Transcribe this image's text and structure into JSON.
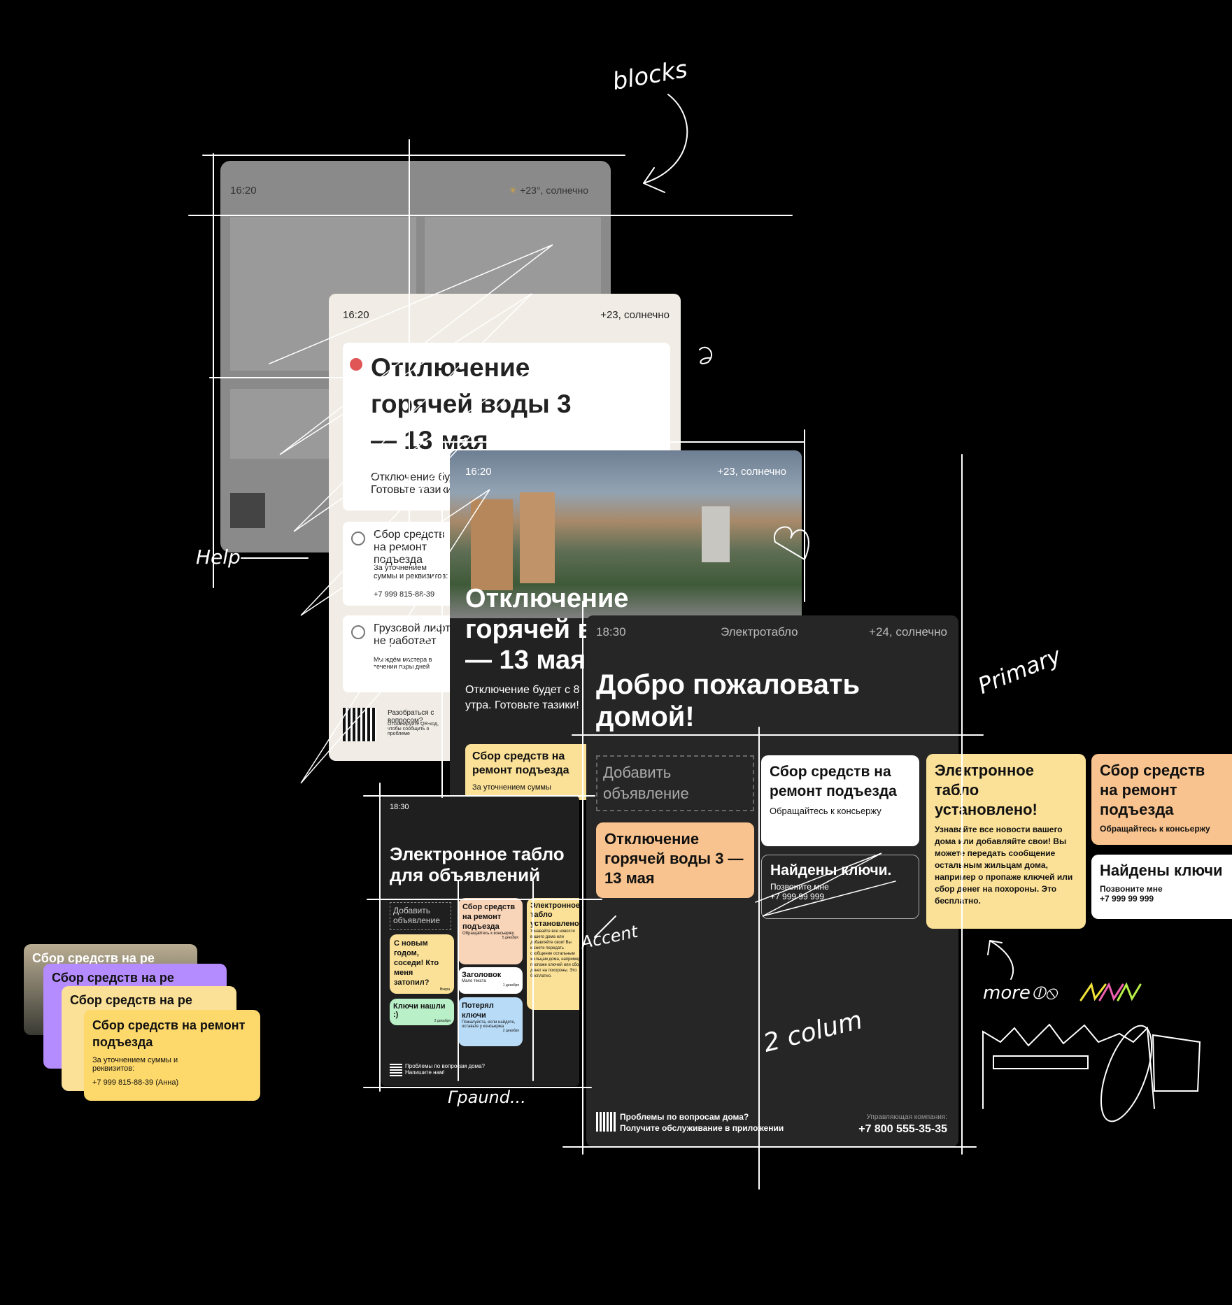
{
  "colors": {
    "background": "#000000",
    "dark_board": "#262626",
    "cream": "#f1ede6",
    "accent_orange": "#f8c38e",
    "accent_yellow": "#fbe197",
    "purple": "#b48cff",
    "mint": "#b9f0c8",
    "blue": "#b8dcf8"
  },
  "grey_screen": {
    "time": "16:20",
    "weather": "+23°, солнечно"
  },
  "cream_screen": {
    "time": "16:20",
    "weather": "+23, солнечно",
    "alert_title": "Отключение горячей воды 3 — 13 мая",
    "alert_text": "Отключение будет… Готовьте тазики!",
    "item1_title": "Сбор средств на ремонт подъезда",
    "item1_text": "За уточнением суммы и реквизитов:",
    "item1_phone": "+7 999 815-88-39",
    "item2_title": "Грузовой лифт не работает",
    "item2_text": "Мы ждём мастера в течении пары дней",
    "footer_title": "Разобраться с вопросом?",
    "footer_text": "Отсканируйте QR-код, чтобы сообщить о проблеме"
  },
  "photo_screen": {
    "time": "16:20",
    "weather": "+23, солнечно",
    "title": "Отключение горячей воды 3 — 13 мая",
    "subtitle": "Отключение будет с 8 утра. Готовьте тазики!",
    "card_title": "Сбор средств на ремонт подъезда",
    "card_text": "За уточнением суммы"
  },
  "small_screen": {
    "time": "18:30",
    "title": "Электронное табло для объявлений",
    "add_label": "Добавить объявление",
    "c1": "С новым годом, соседи! Кто меня затопил?",
    "c1_meta": "Вчера",
    "c2": "Ключи нашли :)",
    "c2_meta": "2 декабря",
    "c3": "Сбор средств на ремонт подъезда",
    "c3_text": "Обращайтесь к консьержу",
    "c3_meta": "5 декабря",
    "c4": "Заголовок",
    "c4_text": "Мало текста",
    "c4_meta": "1 декабря",
    "c5": "Потерял ключи",
    "c5_text": "Пожалуйста, если найдете, оставьте у консьержа",
    "c5_meta": "2 декабря",
    "c6": "Электронное табло установлено!",
    "c6_text": "Узнавайте все новости вашего дома или добавляйте свои! Вы можете передать сообщение остальным жильцам дома, например о пропаже ключей или сбор денег на похороны. Это бесплатно.",
    "footer": "Проблемы по вопросам дома? Напишите нам!"
  },
  "main_screen": {
    "time": "18:30",
    "name": "Электротабло",
    "weather": "+24, солнечно",
    "title": "Добро пожаловать домой!",
    "add_label": "Добавить объявление",
    "c_fund_title": "Сбор средств на ремонт подъезда",
    "c_fund_text": "Обращайтесь к консьержу",
    "c_water": "Отключение горячей воды 3 — 13 мая",
    "c_keys_title": "Найдены ключи.",
    "c_keys_text": "Позвоните мне",
    "c_keys_phone": "+7 999 99 999",
    "footer_q": "Проблемы по вопросам дома?",
    "footer_sub": "Получите обслуживание в приложении",
    "mc_label": "Управляющая компания:",
    "mc_phone": "+7 800 555-35-35"
  },
  "right_cards": {
    "yellow_title": "Электронное табло установлено!",
    "yellow_text": "Узнавайте все новости вашего дома или добавляйте свои! Вы можете передать сообщение остальным жильцам дома, например о пропаже ключей или сбор денег на похороны. Это бесплатно.",
    "orange_title": "Сбор средств на ремонт подъезда",
    "orange_text": "Обращайтесь к консьержу",
    "white_title": "Найдены ключи",
    "white_text": "Позвоните мне",
    "white_phone": "+7 999 99 999"
  },
  "stack_cards": {
    "back1": "Сбор средств на ре",
    "back2": "Сбор средств на ре",
    "back3": "Сбор средств на ре",
    "front_title": "Сбор средств на ремонт подъезда",
    "front_text": "За уточнением суммы и реквизитов:",
    "front_phone": "+7 999 815-88-39 (Анна)"
  },
  "annotations": {
    "blocks": "blocks",
    "help": "Help",
    "primary": "Primary",
    "accent": "Accent",
    "more": "more",
    "two_col": "2 colum",
    "grid": "Граund..."
  }
}
